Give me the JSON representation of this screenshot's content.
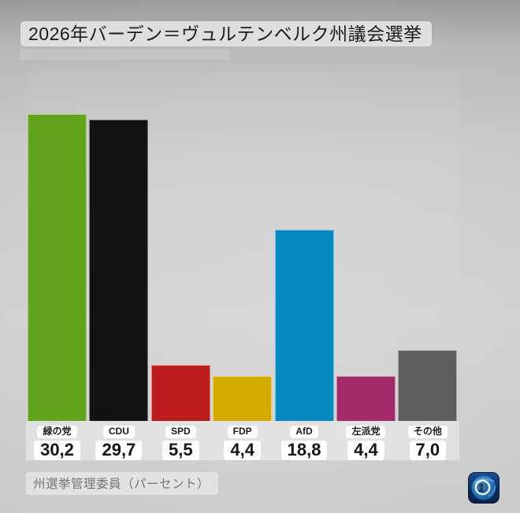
{
  "title": "2026年バーデン＝ヴュルテンベルク州議会選挙",
  "source_note": "州選挙管理委員（パーセント）",
  "logo": {
    "name": "ard-das-erste-logo"
  },
  "colors": {
    "band_background": "#dbdbdb",
    "page_background_top": "#989898",
    "page_background_mid": "#cdcdcd",
    "logo_navy": "#0d2c5c",
    "logo_blue": "#2a7fc4"
  },
  "chart_data": {
    "type": "bar",
    "title": "2026年バーデン＝ヴュルテンベルク州議会選挙",
    "source": "州選挙管理委員（パーセント）",
    "unit": "percent",
    "categories": [
      "緑の党",
      "CDU",
      "SPD",
      "FDP",
      "AfD",
      "左派党",
      "その他"
    ],
    "values": [
      30.2,
      29.7,
      5.5,
      4.4,
      18.8,
      4.4,
      7.0
    ],
    "value_labels": [
      "30,2",
      "29,7",
      "5,5",
      "4,4",
      "18,8",
      "4,4",
      "7,0"
    ],
    "bar_colors": [
      "#61a41c",
      "#131313",
      "#bc1c1c",
      "#d5ab00",
      "#0589c0",
      "#a42a68",
      "#5e5e5e"
    ],
    "ylim": [
      0,
      30.2
    ],
    "grid": false,
    "legend": false,
    "value_labels_position": "below-bar",
    "decimal_style": "comma"
  }
}
